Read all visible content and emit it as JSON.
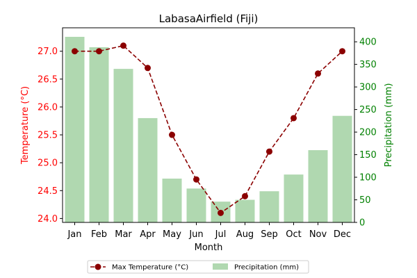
{
  "chart_data": {
    "type": "bar+line",
    "title": "LabasaAirfield (Fiji)",
    "xlabel": "Month",
    "categories": [
      "Jan",
      "Feb",
      "Mar",
      "Apr",
      "May",
      "Jun",
      "Jul",
      "Aug",
      "Sep",
      "Oct",
      "Nov",
      "Dec"
    ],
    "left_axis": {
      "label": "Temperature (°C)",
      "color": "#ff0000",
      "ylim": [
        23.93,
        27.42
      ],
      "ticks": [
        24.0,
        24.5,
        25.0,
        25.5,
        26.0,
        26.5,
        27.0
      ],
      "tick_labels": [
        "24.0",
        "24.5",
        "25.0",
        "25.5",
        "26.0",
        "26.5",
        "27.0"
      ]
    },
    "right_axis": {
      "label": "Precipitation (mm)",
      "color": "#008000",
      "ylim": [
        0,
        431
      ],
      "ticks": [
        0,
        50,
        100,
        150,
        200,
        250,
        300,
        350,
        400
      ],
      "tick_labels": [
        "0",
        "50",
        "100",
        "150",
        "200",
        "250",
        "300",
        "350",
        "400"
      ]
    },
    "series": [
      {
        "name": "Max Temperature (°C)",
        "type": "line",
        "axis": "left",
        "color": "#8b0000",
        "line_style": "dashed",
        "marker": "circle",
        "values": [
          27.0,
          27.0,
          27.1,
          26.7,
          25.5,
          24.7,
          24.1,
          24.4,
          25.2,
          25.8,
          26.6,
          27.0
        ]
      },
      {
        "name": "Precipitation (mm)",
        "type": "bar",
        "axis": "right",
        "color": "#b0d8b0",
        "values": [
          411,
          388,
          340,
          231,
          97,
          75,
          46,
          50,
          69,
          106,
          160,
          236
        ]
      }
    ],
    "legend": {
      "placement": "bottom-center",
      "columns": 2
    },
    "grid": false
  }
}
